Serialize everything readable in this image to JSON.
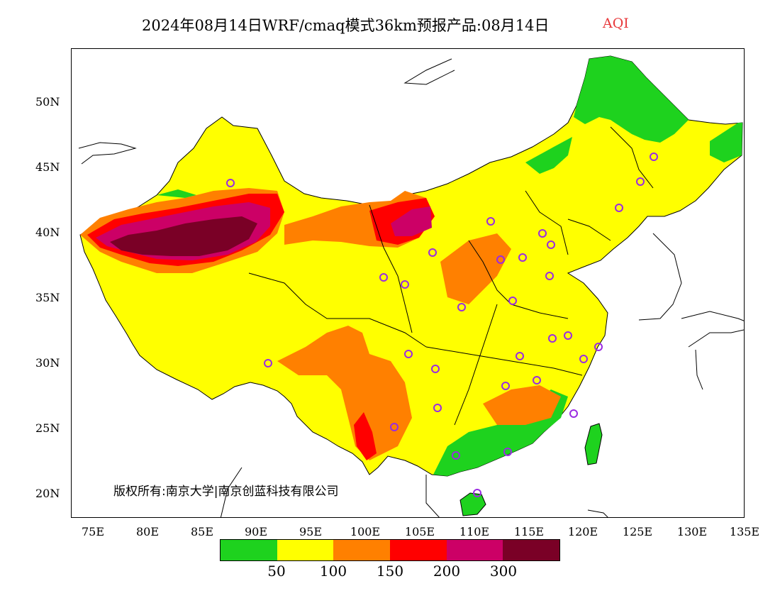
{
  "title": {
    "main": "2024年08月14日WRF/cmaq模式36km预报产品:08月14日",
    "variable": "AQI",
    "variable_color": "#e8393b"
  },
  "axes": {
    "y_ticks": [
      "50N",
      "45N",
      "40N",
      "35N",
      "30N",
      "25N",
      "20N"
    ],
    "x_ticks": [
      "75E",
      "80E",
      "85E",
      "90E",
      "95E",
      "100E",
      "105E",
      "110E",
      "115E",
      "120E",
      "125E",
      "130E",
      "135E"
    ]
  },
  "copyright": "版权所有:南京大学|南京创蓝科技有限公司",
  "legend": {
    "colors": [
      "#1ed21e",
      "#ffff00",
      "#ff8000",
      "#ff0000",
      "#cc0066",
      "#7a0026"
    ],
    "labels": [
      "50",
      "100",
      "150",
      "200",
      "300"
    ]
  },
  "city_marker_color": "#9a2be2"
}
